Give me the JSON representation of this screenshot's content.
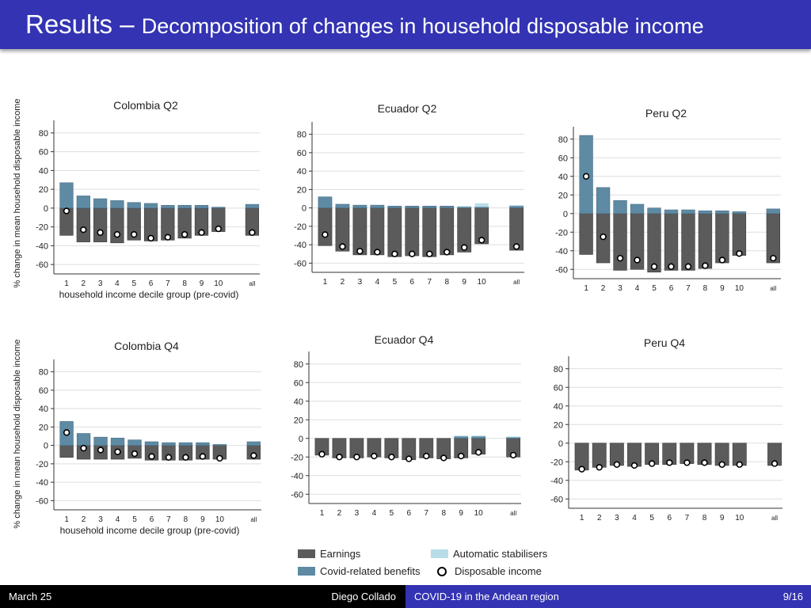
{
  "header": {
    "title": "Results",
    "dash": " – ",
    "subtitle": "Decomposition of changes in household disposable income"
  },
  "y_axis_label": "% change in mean household disposable income",
  "x_axis_label": "household income decile group (pre-covid)",
  "colors": {
    "earnings": "#5b5b5b",
    "covid": "#5e8aa3",
    "auto": "#b8dde8",
    "header": "#3333b3"
  },
  "legend": {
    "earnings": "Earnings",
    "auto": "Automatic stabilisers",
    "covid": "Covid-related benefits",
    "disposable": "Disposable income"
  },
  "chart_data": [
    {
      "type": "bar",
      "title": "Colombia Q2",
      "categories": [
        "1",
        "2",
        "3",
        "4",
        "5",
        "6",
        "7",
        "8",
        "9",
        "10",
        "all"
      ],
      "ylim": [
        -70,
        90
      ],
      "yticks": [
        80,
        60,
        40,
        20,
        0,
        -20,
        -40,
        -60
      ],
      "series": [
        {
          "name": "Earnings",
          "values": [
            -29,
            -36,
            -36,
            -37,
            -34,
            -35,
            -34,
            -32,
            -29,
            -25,
            -29
          ]
        },
        {
          "name": "Covid-related benefits",
          "values": [
            27,
            13,
            10,
            8,
            6,
            5,
            3,
            3,
            3,
            1,
            4
          ]
        },
        {
          "name": "Automatic stabilisers",
          "values": [
            0,
            0,
            0,
            0,
            0,
            0,
            0,
            0,
            0,
            0,
            0
          ]
        },
        {
          "name": "Disposable income",
          "values": [
            -3,
            -23,
            -26,
            -28,
            -28,
            -32,
            -31,
            -28,
            -26,
            -22,
            -26
          ]
        }
      ]
    },
    {
      "type": "bar",
      "title": "Ecuador Q2",
      "categories": [
        "1",
        "2",
        "3",
        "4",
        "5",
        "6",
        "7",
        "8",
        "9",
        "10",
        "all"
      ],
      "ylim": [
        -70,
        90
      ],
      "yticks": [
        80,
        60,
        40,
        20,
        0,
        -20,
        -40,
        -60
      ],
      "series": [
        {
          "name": "Earnings",
          "values": [
            -41,
            -47,
            -51,
            -51,
            -53,
            -52,
            -53,
            -51,
            -48,
            -39,
            -46
          ]
        },
        {
          "name": "Covid-related benefits",
          "values": [
            12,
            4,
            3,
            3,
            2,
            2,
            2,
            2,
            1,
            1,
            2
          ]
        },
        {
          "name": "Automatic stabilisers",
          "values": [
            0,
            0,
            0,
            0,
            0,
            0,
            0,
            0,
            1,
            4,
            1
          ]
        },
        {
          "name": "Disposable income",
          "values": [
            -29,
            -42,
            -47,
            -48,
            -50,
            -50,
            -50,
            -48,
            -43,
            -35,
            -42
          ]
        }
      ]
    },
    {
      "type": "bar",
      "title": "Peru Q2",
      "categories": [
        "1",
        "2",
        "3",
        "4",
        "5",
        "6",
        "7",
        "8",
        "9",
        "10",
        "all"
      ],
      "ylim": [
        -70,
        90
      ],
      "yticks": [
        80,
        60,
        40,
        20,
        0,
        -20,
        -40,
        -60
      ],
      "series": [
        {
          "name": "Earnings",
          "values": [
            -44,
            -53,
            -61,
            -60,
            -63,
            -61,
            -61,
            -59,
            -53,
            -45,
            -53
          ]
        },
        {
          "name": "Covid-related benefits",
          "values": [
            84,
            28,
            14,
            10,
            6,
            4,
            4,
            3,
            3,
            2,
            5
          ]
        },
        {
          "name": "Automatic stabilisers",
          "values": [
            0,
            0,
            0,
            0,
            0,
            0,
            0,
            0,
            0,
            0,
            0
          ]
        },
        {
          "name": "Disposable income",
          "values": [
            40,
            -25,
            -48,
            -50,
            -57,
            -57,
            -57,
            -56,
            -50,
            -43,
            -48
          ]
        }
      ]
    },
    {
      "type": "bar",
      "title": "Colombia Q4",
      "categories": [
        "1",
        "2",
        "3",
        "4",
        "5",
        "6",
        "7",
        "8",
        "9",
        "10",
        "all"
      ],
      "ylim": [
        -70,
        90
      ],
      "yticks": [
        80,
        60,
        40,
        20,
        0,
        -20,
        -40,
        -60
      ],
      "series": [
        {
          "name": "Earnings",
          "values": [
            -13,
            -15,
            -15,
            -15,
            -14,
            -16,
            -16,
            -16,
            -15,
            -15,
            -15
          ]
        },
        {
          "name": "Covid-related benefits",
          "values": [
            26,
            13,
            9,
            8,
            6,
            4,
            3,
            3,
            3,
            1,
            4
          ]
        },
        {
          "name": "Automatic stabilisers",
          "values": [
            0,
            0,
            0,
            0,
            0,
            0,
            0,
            0,
            0,
            0,
            0
          ]
        },
        {
          "name": "Disposable income",
          "values": [
            14,
            -3,
            -5,
            -7,
            -9,
            -12,
            -13,
            -13,
            -12,
            -14,
            -11
          ]
        }
      ]
    },
    {
      "type": "bar",
      "title": "Ecuador Q4",
      "categories": [
        "1",
        "2",
        "3",
        "4",
        "5",
        "6",
        "7",
        "8",
        "9",
        "10",
        "all"
      ],
      "ylim": [
        -70,
        90
      ],
      "yticks": [
        80,
        60,
        40,
        20,
        0,
        -20,
        -40,
        -60
      ],
      "series": [
        {
          "name": "Earnings",
          "values": [
            -18,
            -21,
            -21,
            -20,
            -21,
            -23,
            -21,
            -22,
            -21,
            -17,
            -20
          ]
        },
        {
          "name": "Covid-related benefits",
          "values": [
            0,
            0,
            0,
            0,
            0,
            0,
            0,
            0,
            2,
            2,
            1
          ]
        },
        {
          "name": "Automatic stabilisers",
          "values": [
            0,
            0,
            0,
            0,
            0,
            0,
            0,
            0,
            1,
            1,
            1
          ]
        },
        {
          "name": "Disposable income",
          "values": [
            -17,
            -20,
            -20,
            -19,
            -20,
            -22,
            -19,
            -21,
            -19,
            -15,
            -18
          ]
        }
      ]
    },
    {
      "type": "bar",
      "title": "Peru Q4",
      "categories": [
        "1",
        "2",
        "3",
        "4",
        "5",
        "6",
        "7",
        "8",
        "9",
        "10",
        "all"
      ],
      "ylim": [
        -70,
        90
      ],
      "yticks": [
        80,
        60,
        40,
        20,
        0,
        -20,
        -40,
        -60
      ],
      "series": [
        {
          "name": "Earnings",
          "values": [
            -29,
            -26,
            -24,
            -25,
            -23,
            -23,
            -22,
            -23,
            -24,
            -24,
            -24
          ]
        },
        {
          "name": "Covid-related benefits",
          "values": [
            0,
            0,
            0,
            0,
            0,
            0,
            0,
            0,
            0,
            0,
            0
          ]
        },
        {
          "name": "Automatic stabilisers",
          "values": [
            0,
            0,
            0,
            0,
            0,
            0,
            0,
            0,
            0,
            0,
            0
          ]
        },
        {
          "name": "Disposable income",
          "values": [
            -28,
            -26,
            -23,
            -24,
            -22,
            -21,
            -21,
            -21,
            -23,
            -23,
            -22
          ]
        }
      ]
    }
  ],
  "footer": {
    "date": "March 25",
    "author": "Diego Collado",
    "short_title": "COVID-19 in the Andean region",
    "page": "9/16"
  }
}
